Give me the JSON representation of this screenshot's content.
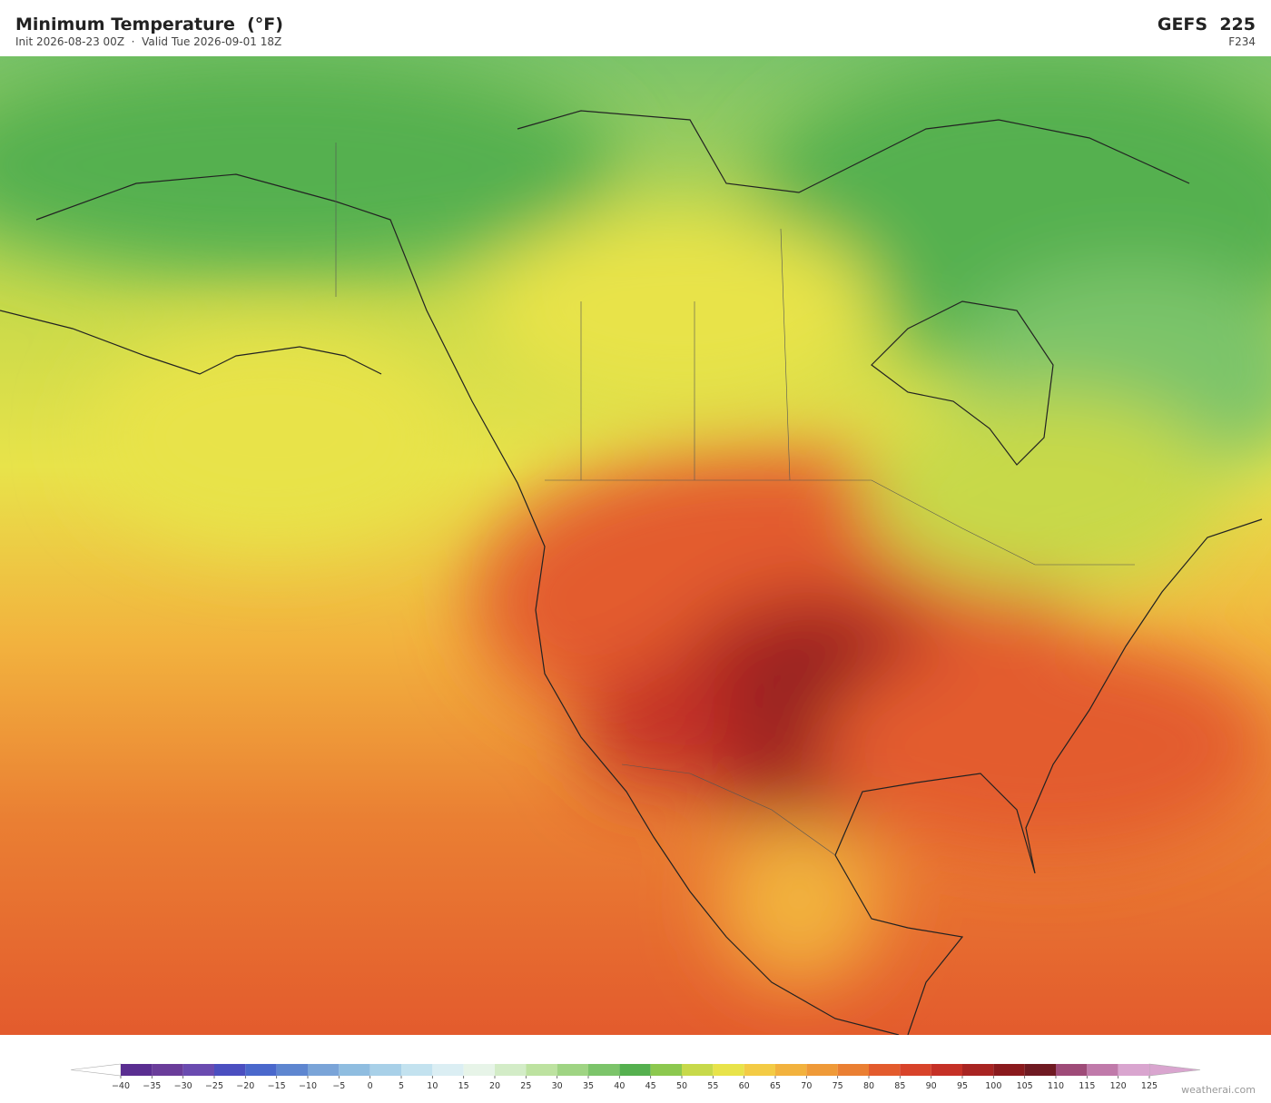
{
  "header": {
    "title": "Minimum Temperature  (°F)",
    "subtitle": "Init 2026-08-23 00Z  ·  Valid Tue 2026-09-01 18Z",
    "model": "GEFS  225",
    "forecast_hour": "F234"
  },
  "colorbar": {
    "ticks": [
      {
        "value": -40,
        "label": "−40"
      },
      {
        "value": -35,
        "label": "−35"
      },
      {
        "value": -30,
        "label": "−30"
      },
      {
        "value": -25,
        "label": "−25"
      },
      {
        "value": -20,
        "label": "−20"
      },
      {
        "value": -15,
        "label": "−15"
      },
      {
        "value": -10,
        "label": "−10"
      },
      {
        "value": -5,
        "label": "−5"
      },
      0,
      5,
      10,
      15,
      20,
      25,
      30,
      35,
      40,
      45,
      50,
      55,
      60,
      65,
      70,
      75,
      80,
      85,
      90,
      95,
      100,
      105,
      110,
      115,
      120,
      125
    ],
    "colors": [
      "#5a2e91",
      "#6a3d9a",
      "#6a4bb0",
      "#4b4fc0",
      "#4a68cc",
      "#5e86d0",
      "#7aa4d8",
      "#8fbde0",
      "#a8d0e8",
      "#c3e2ef",
      "#dbeef3",
      "#e7f4e8",
      "#d3ecc7",
      "#bde2a0",
      "#9fd483",
      "#7cc46a",
      "#55b04f",
      "#8cc84f",
      "#c7d94a",
      "#e8e34a",
      "#f3cb45",
      "#f2b23e",
      "#ef9a38",
      "#ea7f33",
      "#e35b2d",
      "#d8432a",
      "#c53026",
      "#a82422",
      "#8a1a1d",
      "#6f1a22",
      "#9e4b78",
      "#c07aaa",
      "#d9a5cf"
    ],
    "under_color": "#ffffff",
    "over_color": "#d9a5cf"
  },
  "footer": {
    "credit": "weatherai.com"
  }
}
